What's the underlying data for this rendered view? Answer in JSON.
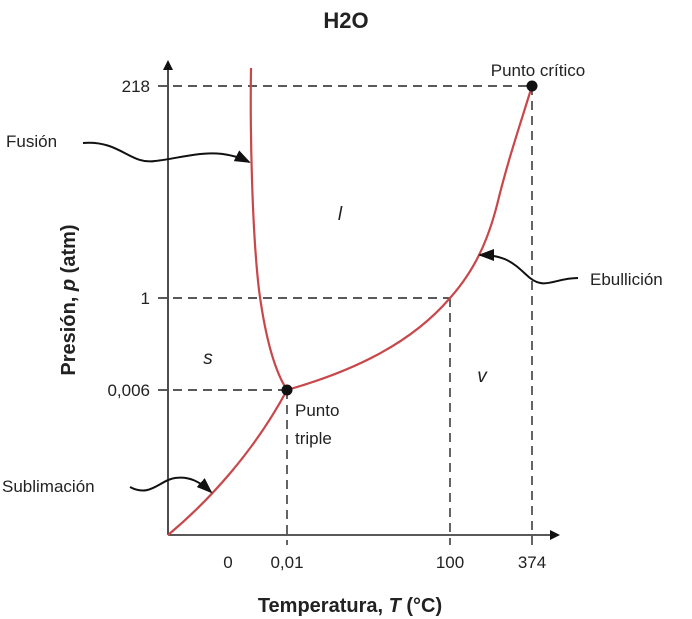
{
  "title": "H2O",
  "x_axis": {
    "label_prefix": "Temperatura, ",
    "label_var": "T",
    "label_suffix": " (°C)",
    "ticks": [
      "0",
      "0,01",
      "100",
      "374"
    ]
  },
  "y_axis": {
    "label_prefix": "Presión, ",
    "label_var": "p",
    "label_suffix": " (atm)",
    "ticks": [
      "218",
      "1",
      "0,006"
    ]
  },
  "phases": {
    "solid": "s",
    "liquid": "l",
    "vapor": "v"
  },
  "points": {
    "triple": {
      "line1": "Punto",
      "line2": "triple",
      "T": 0.01,
      "p": 0.006
    },
    "critical": {
      "label": "Punto crítico",
      "T": 374,
      "p": 218
    }
  },
  "annotations": {
    "fusion": "Fusión",
    "boiling": "Ebullición",
    "sublimation": "Sublimación"
  },
  "colors": {
    "curve": "#c8474a",
    "text": "#222222"
  }
}
